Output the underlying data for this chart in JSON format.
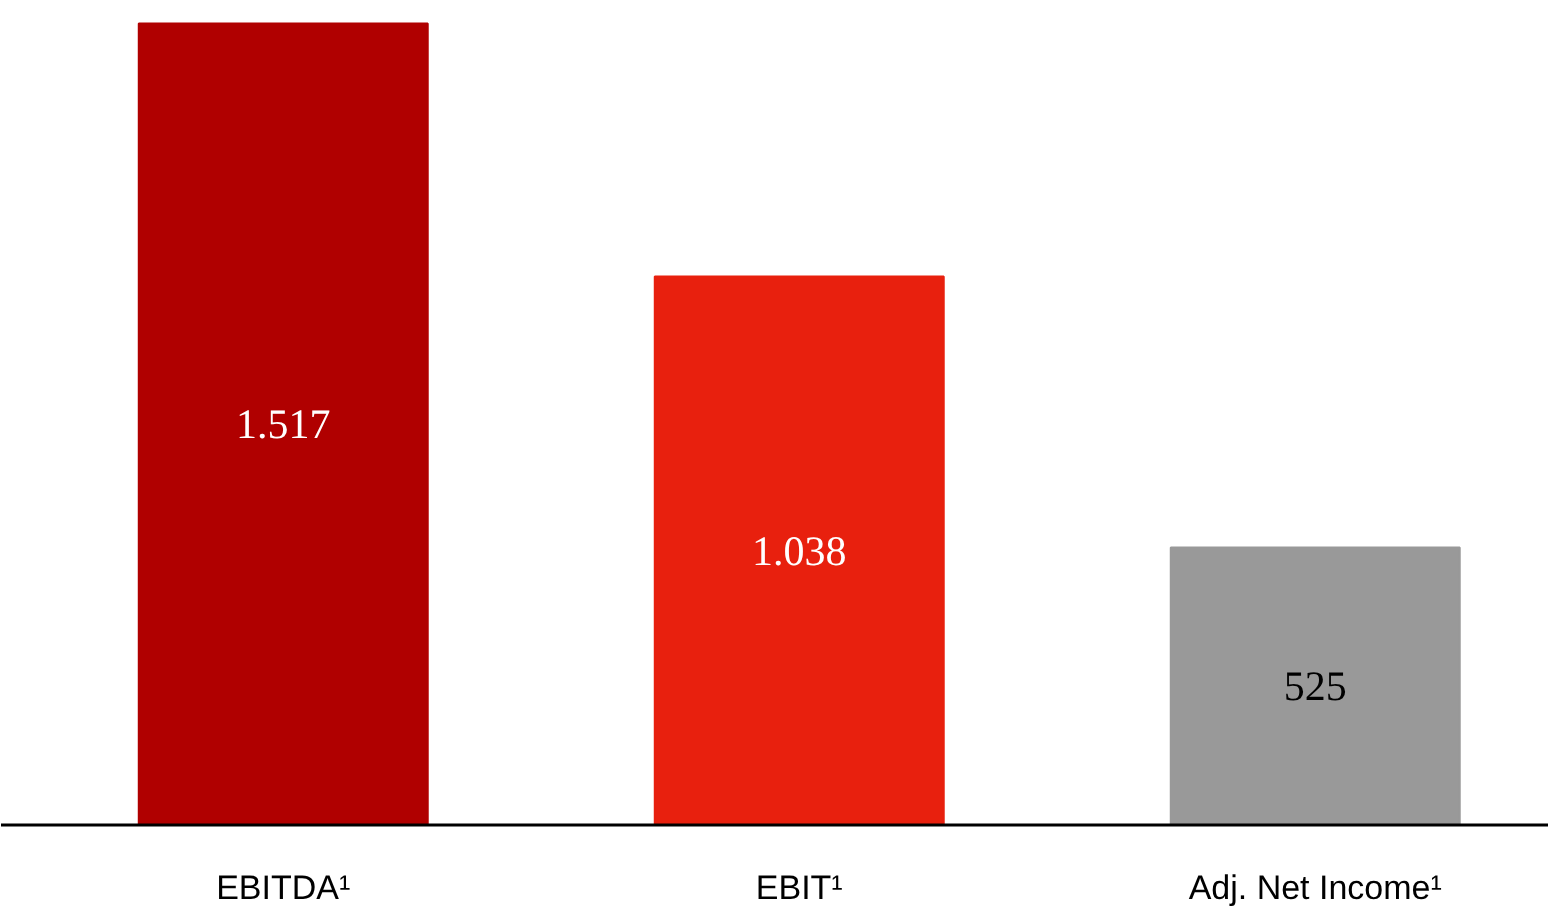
{
  "chart_data": {
    "type": "bar",
    "categories": [
      "EBITDA¹",
      "EBIT¹",
      "Adj. Net Income¹"
    ],
    "values": [
      1517,
      1038,
      525
    ],
    "colors": [
      "#b00000",
      "#e8200e",
      "#999999"
    ],
    "value_labels": [
      "1.517",
      "1.038",
      "525"
    ],
    "grid": false
  }
}
